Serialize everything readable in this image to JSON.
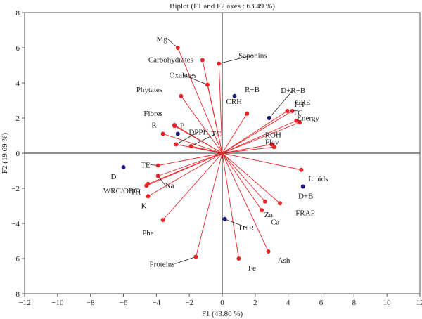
{
  "chart_data": {
    "type": "scatter",
    "title": "Biplot (F1 and F2 axes : 63.49 %)",
    "xlabel": "F1 (43.80 %)",
    "ylabel": "F2 (19.69 %)",
    "xlim": [
      -12,
      12
    ],
    "ylim": [
      -8,
      8
    ],
    "xticks": [
      "-12",
      "-10",
      "-8",
      "-6",
      "-4",
      "-2",
      "0",
      "2",
      "4",
      "6",
      "8",
      "10",
      "12"
    ],
    "yticks": [
      "-8",
      "-6",
      "-4",
      "-2",
      "0",
      "2",
      "4",
      "6",
      "8"
    ],
    "grid": false,
    "legend": "none",
    "colors": {
      "variables": "#e8262a",
      "observations": "#1a1a7a",
      "vectors": "#e8262a",
      "leader": "#222222",
      "axes": "#222222",
      "frame": "#555555"
    },
    "series": [
      {
        "points": [
          {
            "label": "Mg",
            "x": -2.7,
            "y": 6.0
          },
          {
            "label": "Carbohydrates",
            "x": -1.2,
            "y": 5.3
          },
          {
            "label": "Saponins",
            "x": -0.2,
            "y": 5.1
          },
          {
            "label": "Oxalates",
            "x": -0.9,
            "y": 3.9
          },
          {
            "label": "Phytates",
            "x": -2.5,
            "y": 3.25
          },
          {
            "label": "Fibres",
            "x": -2.9,
            "y": 1.6
          },
          {
            "label": "P",
            "x": -2.9,
            "y": 1.55
          },
          {
            "label": "R",
            "x": -3.6,
            "y": 1.1
          },
          {
            "label": "DPPH",
            "x": -2.8,
            "y": 0.5
          },
          {
            "label": "TC",
            "x": -1.9,
            "y": 0.4
          },
          {
            "label": "CRH",
            "x": 1.5,
            "y": 2.25
          },
          {
            "label": "PH",
            "x": 3.95,
            "y": 2.4
          },
          {
            "label": "GRE",
            "x": 4.25,
            "y": 2.4
          },
          {
            "label": "TC",
            "x": 4.5,
            "y": 1.85
          },
          {
            "label": "Energy",
            "x": 4.7,
            "y": 1.75
          },
          {
            "label": "ROH",
            "x": 3.0,
            "y": 0.5
          },
          {
            "label": "Flav",
            "x": 3.15,
            "y": 0.35
          },
          {
            "label": "Lipids",
            "x": 4.8,
            "y": -0.95
          },
          {
            "label": "Zn",
            "x": 2.6,
            "y": -2.75
          },
          {
            "label": "FRAP",
            "x": 3.5,
            "y": -2.85
          },
          {
            "label": "Ca",
            "x": 2.4,
            "y": -3.25
          },
          {
            "label": "Ash",
            "x": 2.8,
            "y": -5.6
          },
          {
            "label": "Fe",
            "x": 1.0,
            "y": -6.0
          },
          {
            "label": "Proteins",
            "x": -1.6,
            "y": -5.9
          },
          {
            "label": "Phe",
            "x": -3.6,
            "y": -3.8
          },
          {
            "label": "TE",
            "x": -3.9,
            "y": -0.7
          },
          {
            "label": "Na",
            "x": -3.9,
            "y": -1.3
          },
          {
            "label": "WRC/ORC",
            "x": -4.5,
            "y": -1.75
          },
          {
            "label": "TH",
            "x": -4.6,
            "y": -1.85
          },
          {
            "label": "K",
            "x": -4.5,
            "y": -2.45
          }
        ]
      },
      {
        "points": [
          {
            "label": "D",
            "x": -6.0,
            "y": -0.8
          },
          {
            "label": "",
            "x": -2.7,
            "y": 1.1
          },
          {
            "label": "R+B",
            "x": 0.75,
            "y": 3.25
          },
          {
            "label": "D+R+B",
            "x": 2.85,
            "y": 2.0
          },
          {
            "label": "D+B",
            "x": 4.9,
            "y": -1.9
          },
          {
            "label": "D+R",
            "x": 0.15,
            "y": -3.75
          }
        ]
      }
    ]
  }
}
